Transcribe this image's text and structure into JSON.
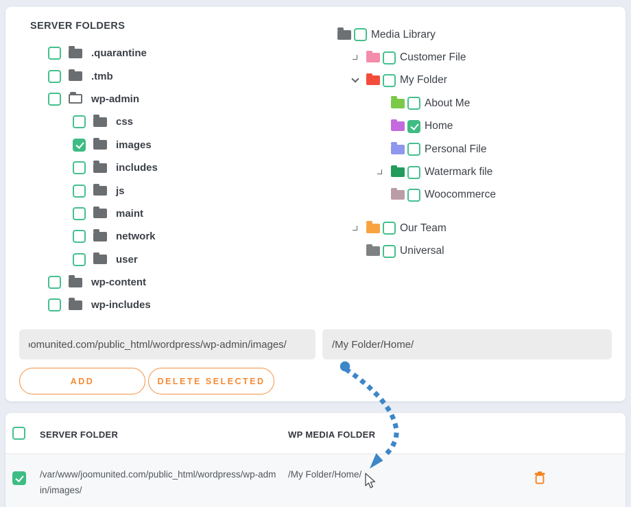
{
  "accent": {
    "green": "#3ebc84",
    "green_border": "#44c08d",
    "orange": "#f58a33",
    "arrow_blue": "#3d86c8",
    "trash_orange": "#f6821f"
  },
  "server_panel": {
    "title": "SERVER FOLDERS",
    "items": [
      {
        "label": ".quarantine",
        "depth": 1,
        "checked": false,
        "open": false,
        "color": "#6b6e71"
      },
      {
        "label": ".tmb",
        "depth": 1,
        "checked": false,
        "open": false,
        "color": "#6b6e71"
      },
      {
        "label": "wp-admin",
        "depth": 1,
        "checked": false,
        "open": true,
        "color": "#6b6e71"
      },
      {
        "label": "css",
        "depth": 2,
        "checked": false,
        "open": false,
        "color": "#6b6e71"
      },
      {
        "label": "images",
        "depth": 2,
        "checked": true,
        "open": false,
        "color": "#6b6e71"
      },
      {
        "label": "includes",
        "depth": 2,
        "checked": false,
        "open": false,
        "color": "#6b6e71"
      },
      {
        "label": "js",
        "depth": 2,
        "checked": false,
        "open": false,
        "color": "#6b6e71"
      },
      {
        "label": "maint",
        "depth": 2,
        "checked": false,
        "open": false,
        "color": "#6b6e71"
      },
      {
        "label": "network",
        "depth": 2,
        "checked": false,
        "open": false,
        "color": "#6b6e71"
      },
      {
        "label": "user",
        "depth": 2,
        "checked": false,
        "open": false,
        "color": "#6b6e71"
      },
      {
        "label": "wp-content",
        "depth": 1,
        "checked": false,
        "open": false,
        "color": "#6b6e71"
      },
      {
        "label": "wp-includes",
        "depth": 1,
        "checked": false,
        "open": false,
        "color": "#6b6e71"
      }
    ]
  },
  "media_panel": {
    "items": [
      {
        "label": "Media Library",
        "depth": 0,
        "checked": false,
        "expander": null,
        "color": "#6e7174",
        "gap_before": false
      },
      {
        "label": "Customer File",
        "depth": 1,
        "checked": false,
        "expander": "collapsed",
        "color": "#f48cab",
        "gap_before": false
      },
      {
        "label": "My Folder",
        "depth": 1,
        "checked": false,
        "expander": "expanded",
        "color": "#f44c3a",
        "gap_before": false
      },
      {
        "label": "About Me",
        "depth": 2,
        "checked": false,
        "expander": null,
        "color": "#7cc848",
        "gap_before": false
      },
      {
        "label": "Home",
        "depth": 2,
        "checked": true,
        "expander": null,
        "color": "#c36ade",
        "gap_before": false
      },
      {
        "label": "Personal File",
        "depth": 2,
        "checked": false,
        "expander": null,
        "color": "#8e96ee",
        "gap_before": false
      },
      {
        "label": "Watermark file",
        "depth": 2,
        "checked": false,
        "expander": "collapsed",
        "color": "#239b5a",
        "gap_before": false
      },
      {
        "label": "Woocommerce",
        "depth": 2,
        "checked": false,
        "expander": null,
        "color": "#bc9ca7",
        "gap_before": false
      },
      {
        "label": "Our Team",
        "depth": 1,
        "checked": false,
        "expander": "collapsed",
        "color": "#f9a340",
        "gap_before": true
      },
      {
        "label": "Universal",
        "depth": 1,
        "checked": false,
        "expander": null,
        "color": "#7e8184",
        "gap_before": false
      }
    ]
  },
  "inputs": {
    "server_path": "oomunited.com/public_html/wordpress/wp-admin/images/",
    "media_path": "/My Folder/Home/"
  },
  "buttons": {
    "add": "ADD",
    "delete_selected": "DELETE SELECTED"
  },
  "table": {
    "select_all_checked": false,
    "headers": {
      "server": "SERVER FOLDER",
      "media": "WP MEDIA FOLDER"
    },
    "rows": [
      {
        "checked": true,
        "server_folder": "/var/www/joomunited.com/public_html/wordpress/wp-admin/images/",
        "media_folder": "/My Folder/Home/",
        "delete_icon": "trash-icon"
      }
    ]
  }
}
